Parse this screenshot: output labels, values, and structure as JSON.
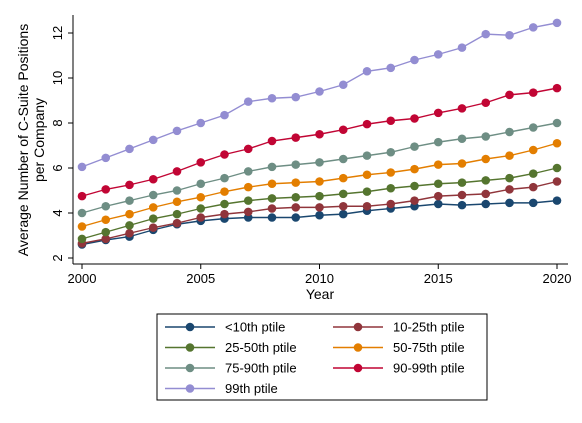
{
  "chart_data": {
    "type": "line",
    "xlabel": "Year",
    "ylabel_lines": [
      "Average Number of C-Suite Positions",
      "per Company"
    ],
    "x": [
      2000,
      2001,
      2002,
      2003,
      2004,
      2005,
      2006,
      2007,
      2008,
      2009,
      2010,
      2011,
      2012,
      2013,
      2014,
      2015,
      2016,
      2017,
      2018,
      2019,
      2020
    ],
    "xlim": [
      2000,
      2020
    ],
    "ylim": [
      2,
      12.8
    ],
    "x_ticks": [
      "2000",
      "2005",
      "2010",
      "2015",
      "2020"
    ],
    "y_ticks": [
      "2",
      "4",
      "6",
      "8",
      "10",
      "12"
    ],
    "grid": false,
    "legend_position": "bottom",
    "series": [
      {
        "name": "<10th ptile",
        "color": "#1a476f",
        "values": [
          2.6,
          2.8,
          2.95,
          3.25,
          3.5,
          3.65,
          3.75,
          3.8,
          3.8,
          3.8,
          3.9,
          3.95,
          4.1,
          4.2,
          4.3,
          4.4,
          4.35,
          4.4,
          4.45,
          4.45,
          4.55
        ]
      },
      {
        "name": "10-25th ptile",
        "color": "#90353b",
        "values": [
          2.65,
          2.85,
          3.1,
          3.35,
          3.55,
          3.8,
          3.95,
          4.05,
          4.2,
          4.25,
          4.25,
          4.3,
          4.3,
          4.4,
          4.55,
          4.75,
          4.8,
          4.85,
          5.05,
          5.15,
          5.4
        ]
      },
      {
        "name": "25-50th ptile",
        "color": "#55752f",
        "values": [
          2.85,
          3.15,
          3.45,
          3.75,
          3.95,
          4.2,
          4.4,
          4.55,
          4.65,
          4.7,
          4.75,
          4.85,
          4.95,
          5.1,
          5.2,
          5.3,
          5.35,
          5.45,
          5.55,
          5.75,
          6.0
        ]
      },
      {
        "name": "50-75th ptile",
        "color": "#e37e00",
        "values": [
          3.4,
          3.7,
          3.95,
          4.25,
          4.5,
          4.7,
          4.95,
          5.15,
          5.3,
          5.35,
          5.4,
          5.55,
          5.7,
          5.8,
          5.95,
          6.15,
          6.2,
          6.4,
          6.55,
          6.8,
          7.1
        ]
      },
      {
        "name": "75-90th ptile",
        "color": "#6e8e84",
        "values": [
          4.0,
          4.3,
          4.55,
          4.8,
          5.0,
          5.3,
          5.55,
          5.85,
          6.05,
          6.15,
          6.25,
          6.4,
          6.55,
          6.7,
          6.95,
          7.15,
          7.3,
          7.4,
          7.6,
          7.8,
          8.0
        ]
      },
      {
        "name": "90-99th ptile",
        "color": "#c10534",
        "values": [
          4.75,
          5.05,
          5.25,
          5.5,
          5.85,
          6.25,
          6.6,
          6.85,
          7.2,
          7.35,
          7.5,
          7.7,
          7.95,
          8.1,
          8.2,
          8.45,
          8.65,
          8.9,
          9.25,
          9.35,
          9.55
        ]
      },
      {
        "name": "99th ptile",
        "color": "#938dd2",
        "values": [
          6.05,
          6.45,
          6.85,
          7.25,
          7.65,
          8.0,
          8.35,
          8.95,
          9.1,
          9.15,
          9.4,
          9.7,
          10.3,
          10.45,
          10.8,
          11.05,
          11.35,
          11.95,
          11.9,
          12.25,
          12.45
        ]
      }
    ]
  }
}
